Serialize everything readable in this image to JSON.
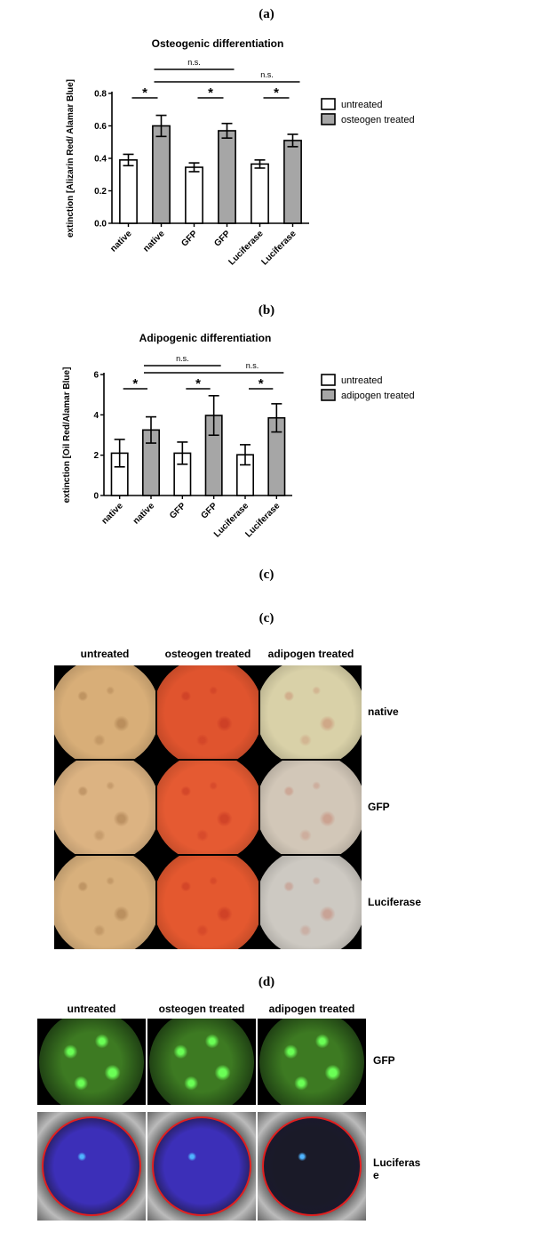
{
  "figure": {
    "panel_labels": {
      "a": "(a)",
      "b": "(b)",
      "c1": "(c)",
      "c2": "(c)",
      "d": "(d)"
    }
  },
  "chart_data": [
    {
      "type": "bar",
      "title": "Osteogenic differentiation",
      "ylabel": "extinction [Alizarin Red/ Alamar Blue]",
      "ylim": [
        0,
        0.8
      ],
      "yticks": [
        0.0,
        0.2,
        0.4,
        0.6,
        0.8
      ],
      "yticklabels": [
        "0.0",
        "0.2",
        "0.4",
        "0.6",
        "0.8"
      ],
      "categories": [
        "native",
        "native",
        "GFP",
        "GFP",
        "Luciferase",
        "Luciferase"
      ],
      "values": [
        0.39,
        0.6,
        0.345,
        0.57,
        0.365,
        0.51
      ],
      "errors": [
        0.035,
        0.065,
        0.027,
        0.045,
        0.025,
        0.038
      ],
      "bar_group": [
        "untreated",
        "treated",
        "untreated",
        "treated",
        "untreated",
        "treated"
      ],
      "legend": {
        "untreated": "untreated",
        "treated": "osteogen treated"
      },
      "colors": {
        "untreated": "#ffffff",
        "treated": "#a6a6a6"
      },
      "sig_pairs": [
        {
          "from": 0,
          "to": 1,
          "label": "*"
        },
        {
          "from": 2,
          "to": 3,
          "label": "*"
        },
        {
          "from": 4,
          "to": 5,
          "label": "*"
        }
      ],
      "ns_brackets": [
        {
          "from": 1,
          "to": 3,
          "label": "n.s."
        },
        {
          "from": 1,
          "to": 5,
          "label": "n.s."
        }
      ],
      "legend_position": "right",
      "grid": false
    },
    {
      "type": "bar",
      "title": "Adipogenic differentiation",
      "ylabel": "extinction [Oil Red/Alamar Blue]",
      "ylim": [
        0,
        6
      ],
      "yticks": [
        0,
        2,
        4,
        6
      ],
      "yticklabels": [
        "0",
        "2",
        "4",
        "6"
      ],
      "categories": [
        "native",
        "native",
        "GFP",
        "GFP",
        "Luciferase",
        "Luciferase"
      ],
      "values": [
        2.1,
        3.25,
        2.1,
        3.97,
        2.02,
        3.85
      ],
      "errors": [
        0.68,
        0.65,
        0.55,
        0.98,
        0.5,
        0.7
      ],
      "bar_group": [
        "untreated",
        "treated",
        "untreated",
        "treated",
        "untreated",
        "treated"
      ],
      "legend": {
        "untreated": "untreated",
        "treated": "adipogen treated"
      },
      "colors": {
        "untreated": "#ffffff",
        "treated": "#a6a6a6"
      },
      "sig_pairs": [
        {
          "from": 0,
          "to": 1,
          "label": "*"
        },
        {
          "from": 2,
          "to": 3,
          "label": "*"
        },
        {
          "from": 4,
          "to": 5,
          "label": "*"
        }
      ],
      "ns_brackets": [
        {
          "from": 1,
          "to": 3,
          "label": "n.s."
        },
        {
          "from": 1,
          "to": 5,
          "label": "n.s."
        }
      ],
      "legend_position": "right",
      "grid": false
    }
  ],
  "micrographs_c": {
    "columns": [
      "untreated",
      "osteogen treated",
      "adipogen treated"
    ],
    "rows": [
      "native",
      "GFP",
      "Luciferase"
    ],
    "fills": [
      [
        "#d8ae78",
        "#e0542e",
        "#d9d1a8"
      ],
      [
        "#dcb382",
        "#e55a32",
        "#d2c7b8"
      ],
      [
        "#d8b07c",
        "#e4582f",
        "#cdc9c2"
      ]
    ],
    "speckles": [
      "#8c5f33",
      "#b3221a",
      "#c06a55"
    ]
  },
  "micrographs_d": {
    "columns": [
      "untreated",
      "osteogen treated",
      "adipogen treated"
    ],
    "rows": [
      "GFP",
      "Luciferas\ne"
    ],
    "gfp_fill": "#1c3a12",
    "gfp_glow": "#6aff55",
    "luc_fill": "#3c2fb8",
    "luc_ring": "#e02020"
  }
}
